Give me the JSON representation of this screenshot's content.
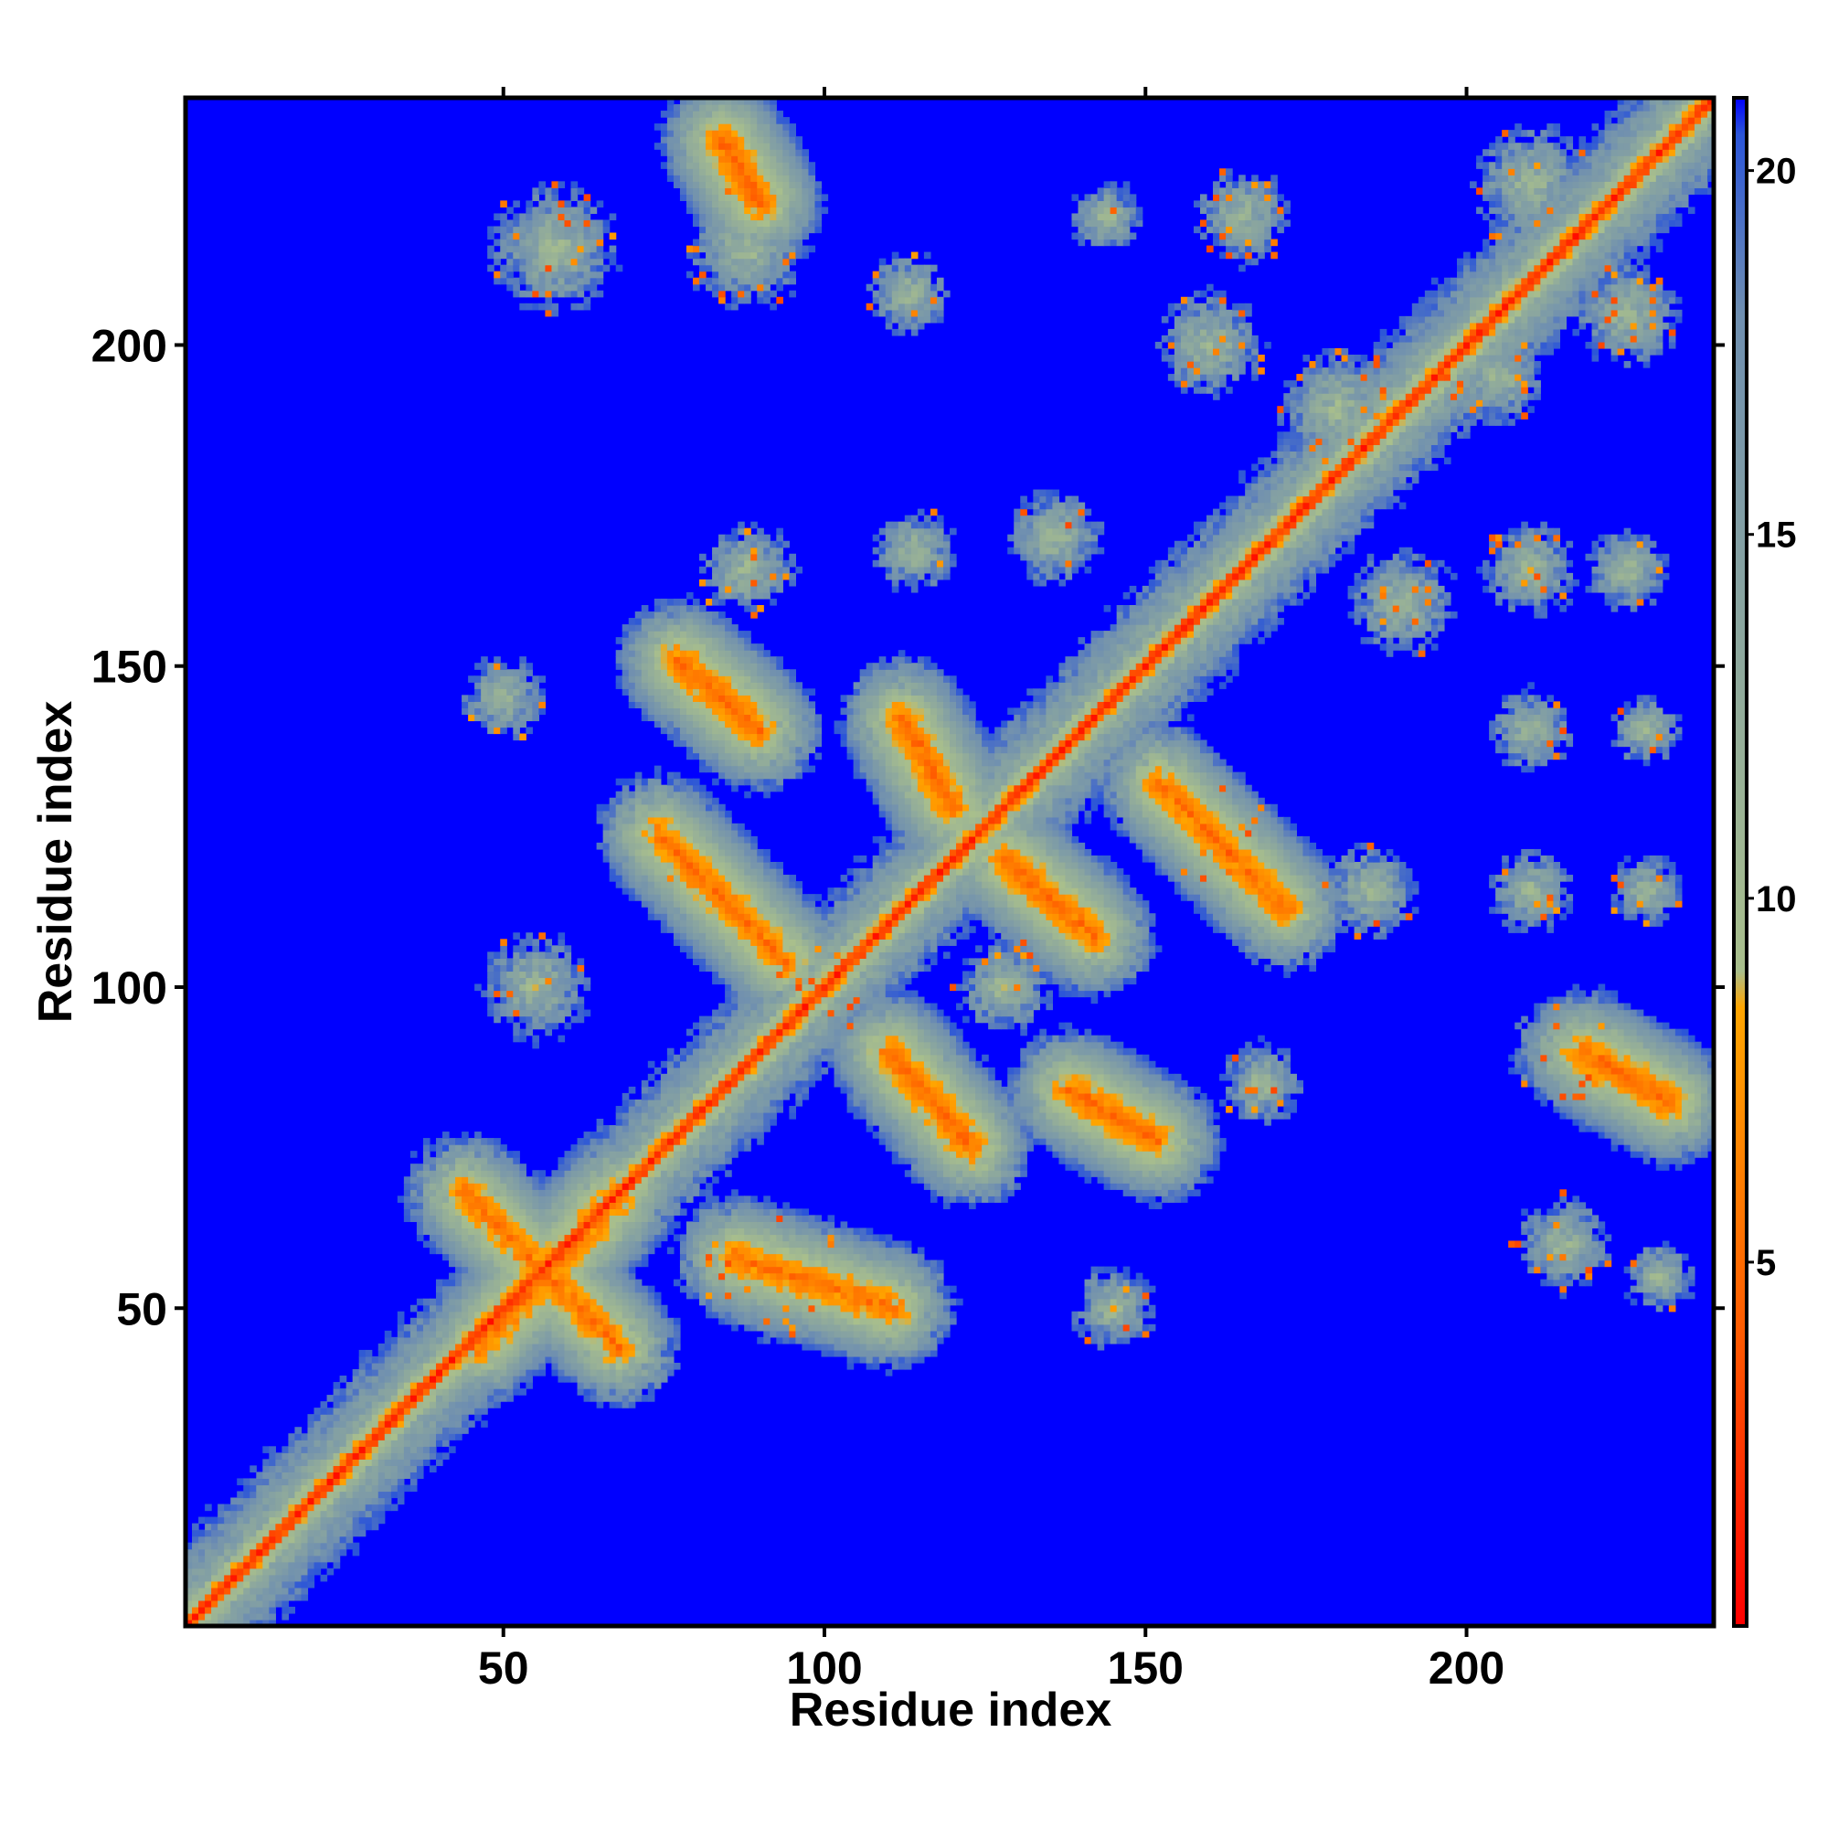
{
  "chart_data": {
    "type": "heatmap",
    "title": "",
    "xlabel": "Residue index",
    "ylabel": "Residue index",
    "xlim": [
      1,
      238
    ],
    "ylim": [
      1,
      238
    ],
    "x_ticks": [
      50,
      100,
      150,
      200
    ],
    "y_ticks": [
      50,
      100,
      150,
      200
    ],
    "colorbar": {
      "range": [
        0,
        21
      ],
      "ticks": [
        5,
        10,
        15,
        20
      ],
      "stops": [
        {
          "value": 0,
          "color": "#ff0000"
        },
        {
          "value": 4,
          "color": "#ff5a00"
        },
        {
          "value": 8.5,
          "color": "#ffa500"
        },
        {
          "value": 9,
          "color": "#a9bf8c"
        },
        {
          "value": 18,
          "color": "#6f8fb0"
        },
        {
          "value": 20.5,
          "color": "#2b55d8"
        },
        {
          "value": 21,
          "color": "#0000ff"
        }
      ],
      "background_color": "#0000ff"
    },
    "diagonal": {
      "from": 1,
      "to": 238,
      "distance": 0
    },
    "contact_bands": [
      {
        "x": [
          44,
          68
        ],
        "y": [
          68,
          44
        ]
      },
      {
        "x": [
          46,
          68
        ],
        "y": [
          44,
          68
        ]
      },
      {
        "x": [
          86,
          111
        ],
        "y": [
          58,
          50
        ]
      },
      {
        "x": [
          74,
          94
        ],
        "y": [
          124,
          104
        ]
      },
      {
        "x": [
          77,
          90
        ],
        "y": [
          151,
          140
        ]
      },
      {
        "x": [
          110,
          123
        ],
        "y": [
          90,
          75
        ]
      },
      {
        "x": [
          112,
          120
        ],
        "y": [
          142,
          128
        ]
      },
      {
        "x": [
          128,
          142
        ],
        "y": [
          120,
          108
        ]
      },
      {
        "x": [
          138,
          152
        ],
        "y": [
          84,
          76
        ]
      },
      {
        "x": [
          152,
          172
        ],
        "y": [
          132,
          112
        ]
      },
      {
        "x": [
          84,
          90
        ],
        "y": [
          232,
          222
        ]
      },
      {
        "x": [
          218,
          232
        ],
        "y": [
          90,
          82
        ]
      }
    ],
    "contact_clusters": [
      {
        "x": 58,
        "y": 215,
        "size": 11
      },
      {
        "x": 88,
        "y": 215,
        "size": 10
      },
      {
        "x": 113,
        "y": 208,
        "size": 7
      },
      {
        "x": 144,
        "y": 220,
        "size": 6
      },
      {
        "x": 165,
        "y": 220,
        "size": 8
      },
      {
        "x": 180,
        "y": 190,
        "size": 10
      },
      {
        "x": 88,
        "y": 165,
        "size": 8
      },
      {
        "x": 114,
        "y": 168,
        "size": 7
      },
      {
        "x": 136,
        "y": 170,
        "size": 8
      },
      {
        "x": 50,
        "y": 145,
        "size": 7
      },
      {
        "x": 55,
        "y": 100,
        "size": 9
      },
      {
        "x": 75,
        "y": 120,
        "size": 6
      },
      {
        "x": 100,
        "y": 100,
        "size": 8
      },
      {
        "x": 128,
        "y": 100,
        "size": 8
      },
      {
        "x": 92,
        "y": 55,
        "size": 11
      },
      {
        "x": 145,
        "y": 50,
        "size": 7
      },
      {
        "x": 168,
        "y": 85,
        "size": 7
      },
      {
        "x": 190,
        "y": 160,
        "size": 9
      },
      {
        "x": 210,
        "y": 165,
        "size": 8
      },
      {
        "x": 225,
        "y": 165,
        "size": 7
      },
      {
        "x": 210,
        "y": 140,
        "size": 7
      },
      {
        "x": 228,
        "y": 140,
        "size": 6
      },
      {
        "x": 160,
        "y": 125,
        "size": 9
      },
      {
        "x": 185,
        "y": 115,
        "size": 8
      },
      {
        "x": 210,
        "y": 115,
        "size": 7
      },
      {
        "x": 228,
        "y": 115,
        "size": 6
      },
      {
        "x": 215,
        "y": 90,
        "size": 9
      },
      {
        "x": 215,
        "y": 60,
        "size": 8
      },
      {
        "x": 230,
        "y": 55,
        "size": 6
      },
      {
        "x": 210,
        "y": 225,
        "size": 10
      },
      {
        "x": 225,
        "y": 205,
        "size": 9
      },
      {
        "x": 160,
        "y": 200,
        "size": 9
      },
      {
        "x": 205,
        "y": 195,
        "size": 8
      }
    ]
  }
}
